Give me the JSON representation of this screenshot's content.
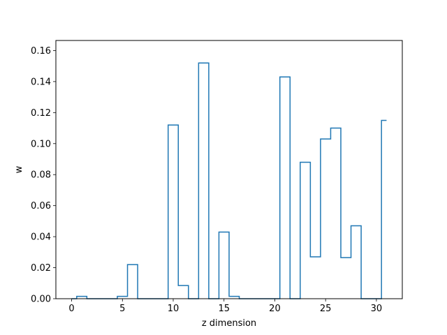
{
  "chart_data": {
    "type": "line",
    "drawstyle": "steps-mid",
    "xlabel": "z dimension",
    "ylabel": "w",
    "xlim": [
      -1.55,
      32.55
    ],
    "ylim": [
      0,
      0.1665
    ],
    "x_ticks": [
      0,
      5,
      10,
      15,
      20,
      25,
      30
    ],
    "x_tick_labels": [
      "0",
      "5",
      "10",
      "15",
      "20",
      "25",
      "30"
    ],
    "y_ticks": [
      0,
      0.02,
      0.04,
      0.06,
      0.08,
      0.1,
      0.12,
      0.14,
      0.16
    ],
    "y_tick_labels": [
      "0.00",
      "0.02",
      "0.04",
      "0.06",
      "0.08",
      "0.10",
      "0.12",
      "0.14",
      "0.16"
    ],
    "grid": false,
    "legend": "none",
    "series": [
      {
        "color": "#1f77b4",
        "x": [
          0,
          1,
          2,
          3,
          4,
          5,
          6,
          7,
          8,
          9,
          10,
          11,
          12,
          13,
          14,
          15,
          16,
          17,
          18,
          19,
          20,
          21,
          22,
          23,
          24,
          25,
          26,
          27,
          28,
          29,
          30,
          31
        ],
        "y": [
          0,
          0.0015,
          0,
          0,
          0,
          0.0015,
          0.022,
          0,
          0,
          0,
          0.112,
          0.0085,
          0,
          0.152,
          0,
          0.043,
          0.0015,
          0,
          0,
          0,
          0,
          0.143,
          0,
          0.088,
          0.027,
          0.103,
          0.11,
          0.0265,
          0.047,
          0,
          0,
          0.115
        ]
      }
    ]
  }
}
